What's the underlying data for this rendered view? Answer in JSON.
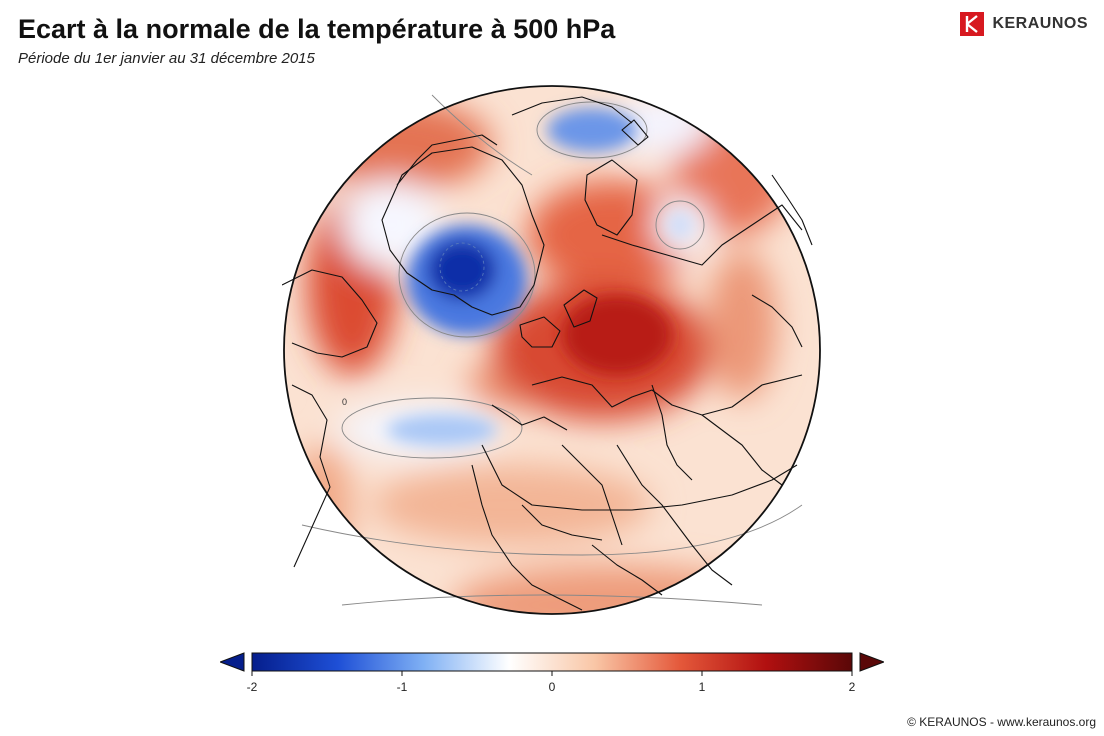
{
  "header": {
    "title": "Ecart à la normale de la température à 500 hPa",
    "subtitle": "Période du 1er janvier au 31 décembre 2015"
  },
  "brand": {
    "name": "KERAUNOS",
    "logo_icon": "keraunos-logo-icon",
    "logo_color": "#d71920"
  },
  "map": {
    "projection": "orthographic",
    "contour_label": "0"
  },
  "colorbar": {
    "min": -2,
    "max": 2,
    "ticks": [
      "-2",
      "-1",
      "0",
      "1",
      "2"
    ],
    "colors": [
      "#051e8c",
      "#1e4fd6",
      "#7fb0f4",
      "#ffffff",
      "#f9c6a6",
      "#e4583a",
      "#b11010",
      "#5a0808"
    ],
    "extend": "both"
  },
  "footer": {
    "copyright": "© KERAUNOS - www.keraunos.org"
  }
}
